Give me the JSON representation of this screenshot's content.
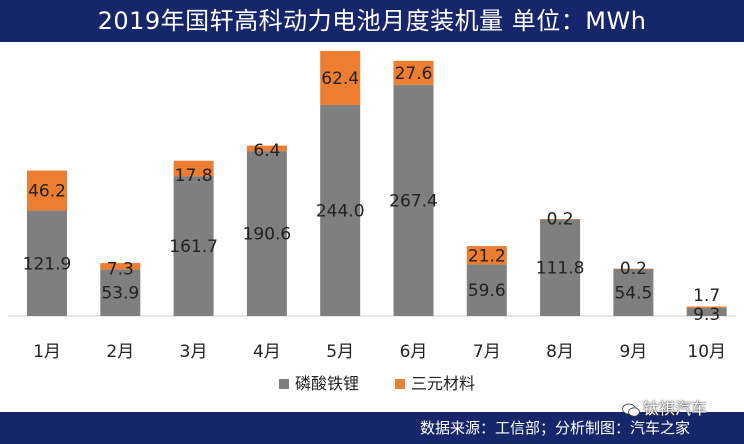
{
  "header": {
    "title": "2019年国轩高科动力电池月度装机量  单位：MWh"
  },
  "footer": {
    "source": "数据来源：工信部；分析制图：汽车之家"
  },
  "watermark": {
    "text": "钛祺汽车",
    "icon": "wechat-icon"
  },
  "colors": {
    "header_bg": "#16266a",
    "lfp": "#7f7f7f",
    "ternary": "#ed7d31"
  },
  "chart_data": {
    "type": "bar",
    "stacked": true,
    "categories": [
      "1月",
      "2月",
      "3月",
      "4月",
      "5月",
      "6月",
      "7月",
      "8月",
      "9月",
      "10月"
    ],
    "series": [
      {
        "name": "磷酸铁锂",
        "color": "#7f7f7f",
        "values": [
          121.9,
          53.9,
          161.7,
          190.6,
          244.0,
          267.4,
          59.6,
          111.8,
          54.5,
          9.3
        ],
        "labels": [
          "121.9",
          "53.9",
          "161.7",
          "190.6",
          "244.0",
          "267.4",
          "59.6",
          "111.8",
          "54.5",
          "9.3"
        ]
      },
      {
        "name": "三元材料",
        "color": "#ed7d31",
        "values": [
          46.2,
          7.3,
          17.8,
          6.4,
          62.4,
          27.6,
          21.2,
          0.2,
          0.2,
          1.7
        ],
        "labels": [
          "46.2",
          "7.3",
          "17.8",
          "6.4",
          "62.4",
          "27.6",
          "21.2",
          "0.2",
          "0.2",
          "1.7"
        ]
      }
    ],
    "ylim": [
      0,
      310
    ],
    "grid": false,
    "legend_position": "bottom"
  }
}
